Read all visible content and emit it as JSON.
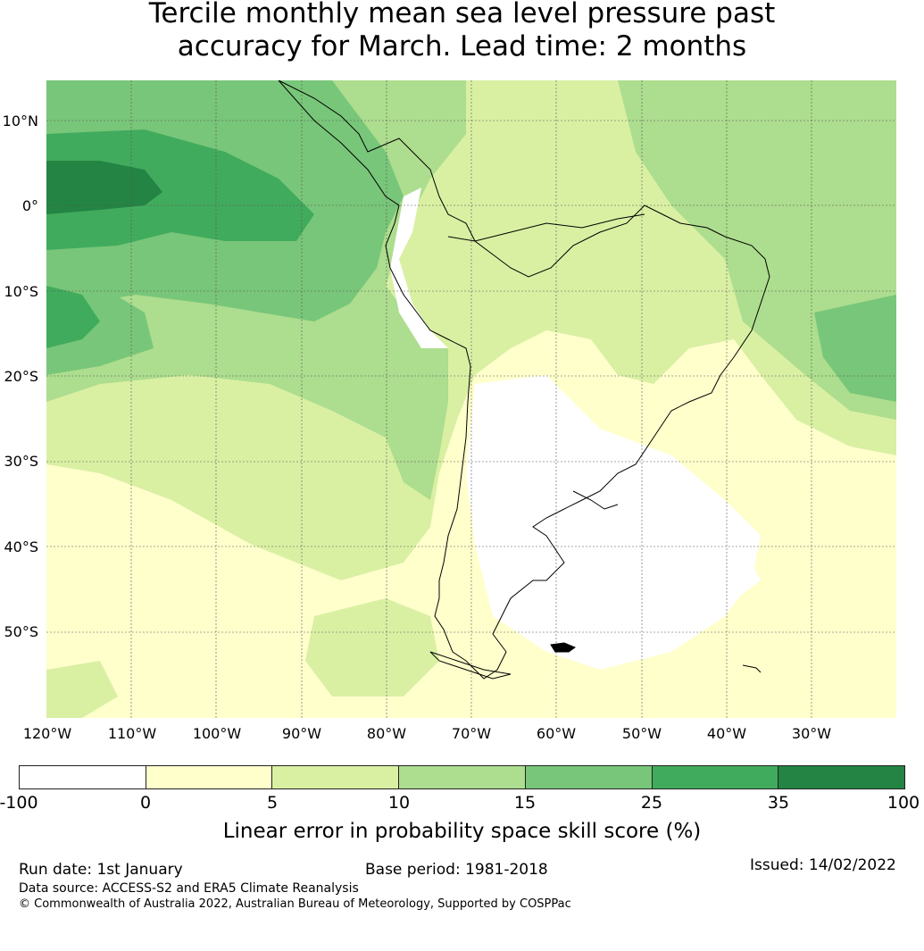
{
  "title": {
    "line1": "Tercile monthly mean sea level pressure past",
    "line2": "accuracy for March. Lead time: 2 months"
  },
  "map": {
    "lat_ticks": [
      "10°N",
      "0°",
      "10°S",
      "20°S",
      "30°S",
      "40°S",
      "50°S"
    ],
    "lon_ticks": [
      "120°W",
      "110°W",
      "100°W",
      "90°W",
      "80°W",
      "70°W",
      "60°W",
      "50°W",
      "40°W",
      "30°W"
    ],
    "colors": {
      "white": "#ffffff",
      "c0_5": "#ffffcc",
      "c5_10": "#d9f0a3",
      "c10_15": "#addd8e",
      "c15_25": "#78c679",
      "c25_35": "#41ab5d",
      "c35_100": "#238443",
      "coast": "#000000",
      "grid": "#555555"
    }
  },
  "legend": {
    "ticks": [
      "-100",
      "0",
      "5",
      "10",
      "15",
      "25",
      "35",
      "100"
    ],
    "label": "Linear error in probability space skill score (%)",
    "bins": [
      {
        "range": "-100 to 0",
        "color": "#ffffff"
      },
      {
        "range": "0 to 5",
        "color": "#ffffcc"
      },
      {
        "range": "5 to 10",
        "color": "#d9f0a3"
      },
      {
        "range": "10 to 15",
        "color": "#addd8e"
      },
      {
        "range": "15 to 25",
        "color": "#78c679"
      },
      {
        "range": "25 to 35",
        "color": "#41ab5d"
      },
      {
        "range": "35 to 100",
        "color": "#238443"
      }
    ]
  },
  "footer": {
    "run_date": "Run date: 1st January",
    "base_period": "Base period: 1981-2018",
    "issued": "Issued: 14/02/2022",
    "data_source": "Data source: ACCESS-S2 and ERA5 Climate Reanalysis",
    "copyright": "© Commonwealth of Australia 2022, Australian Bureau of Meteorology, Supported by COSPPac"
  }
}
